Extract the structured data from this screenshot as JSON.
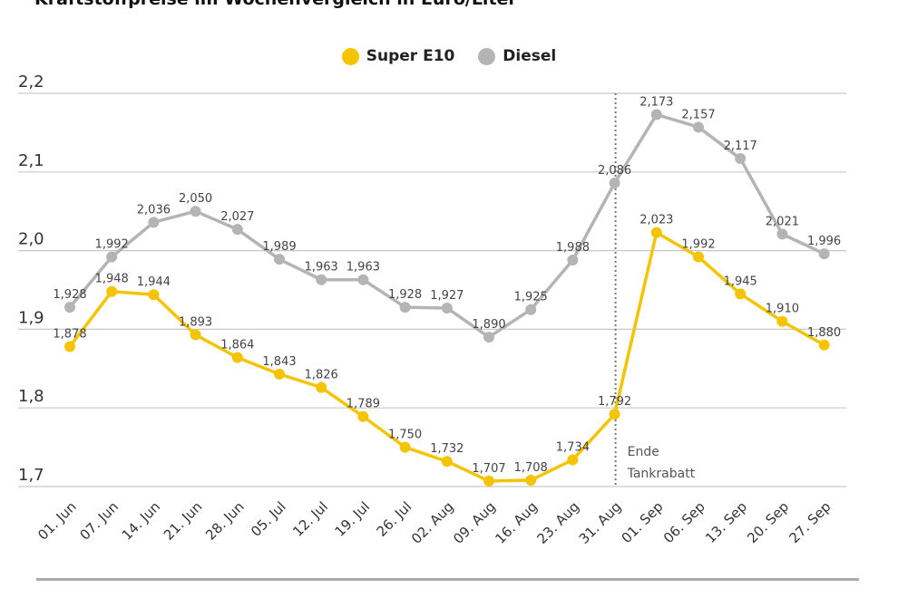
{
  "title": "Kraftstoffpreise im Wochenvergleich in Euro/Liter",
  "chart_data": {
    "type": "line",
    "title": "Kraftstoffpreise im Wochenvergleich in Euro/Liter",
    "categories": [
      "01. Jun",
      "07. Jun",
      "14. Jun",
      "21. Jun",
      "28. Jun",
      "05. Jul",
      "12. Jul",
      "19. Jul",
      "26. Jul",
      "02. Aug",
      "09. Aug",
      "16. Aug",
      "23. Aug",
      "31. Aug",
      "01. Sep",
      "06. Sep",
      "13. Sep",
      "20. Sep",
      "27. Sep"
    ],
    "series": [
      {
        "name": "Super E10",
        "color": "#f5c400",
        "values": [
          1.878,
          1.948,
          1.944,
          1.893,
          1.864,
          1.843,
          1.826,
          1.789,
          1.75,
          1.732,
          1.707,
          1.708,
          1.734,
          1.792,
          2.023,
          1.992,
          1.945,
          1.91,
          1.88
        ]
      },
      {
        "name": "Diesel",
        "color": "#b4b4b4",
        "values": [
          1.928,
          1.992,
          2.036,
          2.05,
          2.027,
          1.989,
          1.963,
          1.963,
          1.928,
          1.927,
          1.89,
          1.925,
          1.988,
          2.086,
          2.173,
          2.157,
          2.117,
          2.021,
          1.996
        ]
      }
    ],
    "ylim": [
      1.7,
      2.2
    ],
    "yticks": [
      "1,7",
      "1,8",
      "1,9",
      "2,0",
      "2,1",
      "2,2"
    ],
    "grid": true,
    "legend_position": "top-center",
    "annotation": {
      "after_category": "31. Aug",
      "line1": "Ende",
      "line2": "Tankrabatt"
    }
  }
}
